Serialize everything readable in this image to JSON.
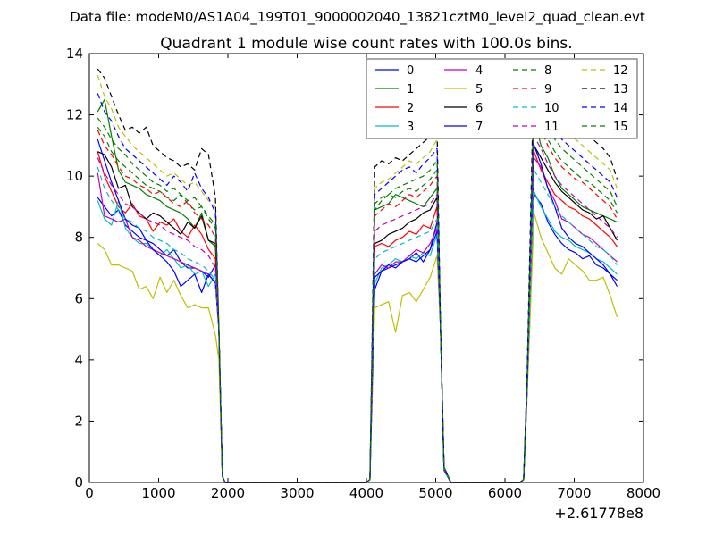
{
  "header": {
    "data_file": "Data file: modeM0/AS1A04_199T01_9000002040_13821cztM0_level2_quad_clean.evt"
  },
  "chart_data": {
    "type": "line",
    "title": "Quadrant 1 module wise count rates with 100.0s bins.",
    "xlabel": "",
    "ylabel": "",
    "x_offset_label": "+2.61778e8",
    "xlim": [
      0,
      8000
    ],
    "ylim": [
      0,
      14
    ],
    "xticks": [
      0,
      1000,
      2000,
      3000,
      4000,
      5000,
      6000,
      7000,
      8000
    ],
    "yticks": [
      0,
      2,
      4,
      6,
      8,
      10,
      12,
      14
    ],
    "grid": false,
    "legend_position": "top-right",
    "x": [
      120,
      220,
      320,
      420,
      520,
      620,
      720,
      820,
      920,
      1020,
      1120,
      1220,
      1320,
      1420,
      1520,
      1620,
      1720,
      1820,
      1870,
      1920,
      1960,
      4000,
      4050,
      4120,
      4220,
      4320,
      4420,
      4520,
      4620,
      4720,
      4820,
      4920,
      5020,
      5070,
      5120,
      5220,
      6220,
      6270,
      6320,
      6420,
      6520,
      6620,
      6720,
      6820,
      6920,
      7020,
      7120,
      7220,
      7320,
      7420,
      7520,
      7620
    ],
    "series": [
      {
        "name": "0",
        "color": "#0000ff",
        "dash": false,
        "values": [
          9.3,
          9.0,
          8.7,
          8.9,
          8.4,
          8.2,
          8.0,
          7.9,
          7.8,
          7.6,
          7.4,
          7.6,
          7.2,
          7.0,
          7.0,
          6.9,
          6.7,
          7.1,
          5.0,
          0.2,
          0.0,
          0.0,
          0.1,
          6.3,
          6.9,
          7.0,
          7.1,
          7.2,
          7.3,
          7.5,
          7.2,
          7.6,
          8.5,
          5.0,
          0.4,
          0.0,
          0.0,
          0.1,
          3.0,
          9.4,
          9.1,
          8.5,
          8.1,
          7.8,
          7.6,
          7.5,
          7.3,
          7.4,
          7.1,
          7.0,
          6.8,
          6.6
        ]
      },
      {
        "name": "1",
        "color": "#008000",
        "dash": false,
        "values": [
          12.1,
          12.5,
          11.3,
          10.2,
          9.8,
          9.7,
          9.6,
          9.4,
          9.3,
          9.2,
          9.0,
          8.9,
          8.8,
          8.6,
          8.3,
          8.8,
          7.9,
          7.7,
          5.0,
          0.2,
          0.0,
          0.0,
          0.1,
          8.9,
          9.0,
          9.1,
          9.4,
          9.3,
          9.2,
          9.1,
          9.0,
          9.3,
          9.6,
          5.0,
          0.5,
          0.0,
          0.0,
          0.1,
          3.2,
          11.9,
          11.0,
          10.6,
          10.0,
          9.6,
          9.4,
          9.2,
          9.0,
          8.9,
          8.8,
          8.7,
          8.6,
          8.5
        ]
      },
      {
        "name": "2",
        "color": "#ff0000",
        "dash": false,
        "values": [
          10.8,
          10.0,
          9.5,
          9.0,
          8.8,
          9.1,
          8.7,
          8.6,
          8.2,
          8.5,
          8.4,
          8.6,
          8.2,
          8.0,
          8.4,
          8.1,
          7.6,
          7.3,
          5.0,
          0.2,
          0.0,
          0.0,
          0.1,
          7.7,
          7.8,
          7.7,
          7.9,
          8.0,
          8.2,
          8.1,
          8.4,
          8.3,
          9.0,
          5.0,
          0.4,
          0.0,
          0.0,
          0.1,
          3.1,
          10.8,
          10.2,
          9.8,
          9.4,
          9.2,
          9.0,
          8.9,
          8.7,
          8.6,
          8.4,
          8.2,
          8.0,
          7.7
        ]
      },
      {
        "name": "3",
        "color": "#00bfbf",
        "dash": false,
        "values": [
          9.2,
          8.6,
          8.4,
          9.2,
          8.3,
          8.0,
          7.8,
          7.8,
          7.6,
          7.4,
          7.6,
          7.3,
          7.0,
          7.1,
          6.8,
          6.9,
          6.4,
          6.8,
          5.0,
          0.2,
          0.0,
          0.0,
          0.1,
          6.5,
          7.0,
          7.1,
          7.3,
          7.2,
          7.4,
          7.3,
          7.5,
          7.4,
          8.1,
          5.0,
          0.4,
          0.0,
          0.0,
          0.1,
          3.0,
          9.5,
          9.0,
          8.6,
          8.2,
          8.0,
          7.9,
          7.7,
          7.6,
          7.5,
          7.3,
          7.2,
          7.0,
          6.8
        ]
      },
      {
        "name": "4",
        "color": "#bf00bf",
        "dash": false,
        "values": [
          10.1,
          8.7,
          8.6,
          8.5,
          8.6,
          8.0,
          7.9,
          7.7,
          7.6,
          7.5,
          7.4,
          7.3,
          7.2,
          7.1,
          7.0,
          6.9,
          6.8,
          6.5,
          5.0,
          0.2,
          0.0,
          0.0,
          0.1,
          6.8,
          7.1,
          7.0,
          7.2,
          7.2,
          7.4,
          7.6,
          7.5,
          7.8,
          8.3,
          5.0,
          0.4,
          0.0,
          0.0,
          0.1,
          3.1,
          10.6,
          10.3,
          9.6,
          9.2,
          8.6,
          8.5,
          8.3,
          8.1,
          8.0,
          7.8,
          7.6,
          7.4,
          7.2
        ]
      },
      {
        "name": "5",
        "color": "#bfbf00",
        "dash": false,
        "values": [
          7.8,
          7.6,
          7.1,
          7.1,
          7.0,
          6.9,
          6.3,
          6.4,
          6.0,
          6.7,
          6.2,
          6.6,
          6.1,
          5.7,
          5.8,
          5.7,
          5.7,
          4.8,
          4.0,
          0.2,
          0.0,
          0.0,
          0.1,
          5.7,
          5.8,
          5.9,
          4.9,
          6.1,
          6.2,
          5.9,
          6.3,
          6.7,
          7.4,
          5.0,
          0.4,
          0.0,
          0.0,
          0.1,
          2.8,
          8.8,
          8.0,
          7.5,
          7.0,
          6.8,
          7.3,
          7.1,
          6.9,
          6.6,
          6.6,
          6.7,
          6.1,
          5.4
        ]
      },
      {
        "name": "6",
        "color": "#000000",
        "dash": false,
        "values": [
          10.8,
          10.7,
          10.3,
          9.6,
          9.7,
          9.0,
          8.8,
          8.6,
          8.8,
          8.7,
          8.5,
          8.3,
          8.1,
          8.5,
          8.3,
          8.7,
          7.9,
          7.8,
          5.0,
          0.2,
          0.0,
          0.0,
          0.1,
          7.8,
          7.9,
          8.1,
          8.2,
          8.3,
          8.5,
          8.6,
          8.8,
          8.9,
          9.3,
          5.0,
          0.4,
          0.0,
          0.0,
          0.1,
          3.2,
          11.0,
          10.6,
          10.2,
          9.8,
          9.5,
          9.3,
          9.1,
          8.9,
          8.8,
          8.6,
          8.7,
          8.3,
          7.9
        ]
      },
      {
        "name": "7",
        "color": "#0000ff",
        "dash": false,
        "values": [
          11.2,
          10.5,
          9.8,
          9.2,
          8.6,
          8.4,
          8.3,
          7.9,
          7.6,
          7.4,
          7.2,
          6.9,
          6.4,
          6.6,
          6.8,
          6.2,
          6.8,
          6.5,
          5.0,
          0.2,
          0.0,
          0.0,
          0.1,
          6.7,
          6.9,
          7.1,
          7.0,
          7.2,
          7.3,
          7.2,
          7.4,
          7.6,
          8.2,
          5.0,
          0.4,
          0.0,
          0.0,
          0.1,
          3.0,
          11.0,
          10.4,
          9.6,
          9.0,
          8.3,
          8.0,
          7.8,
          7.7,
          7.5,
          7.3,
          7.1,
          6.8,
          6.4
        ]
      },
      {
        "name": "8",
        "color": "#008000",
        "dash": true,
        "values": [
          11.6,
          11.3,
          10.8,
          10.5,
          10.3,
          10.1,
          9.9,
          9.7,
          9.6,
          9.5,
          9.3,
          9.2,
          9.4,
          9.1,
          8.9,
          9.0,
          8.6,
          8.3,
          5.0,
          0.2,
          0.0,
          0.0,
          0.1,
          8.9,
          9.2,
          9.4,
          9.3,
          9.5,
          9.6,
          9.5,
          9.7,
          9.9,
          10.2,
          5.0,
          0.5,
          0.0,
          0.0,
          0.1,
          3.3,
          12.3,
          11.7,
          11.2,
          10.8,
          10.5,
          10.3,
          10.1,
          9.9,
          9.8,
          9.6,
          9.4,
          9.2,
          8.8
        ]
      },
      {
        "name": "9",
        "color": "#ff0000",
        "dash": true,
        "values": [
          11.5,
          11.0,
          10.7,
          10.3,
          10.0,
          9.9,
          9.7,
          9.6,
          9.4,
          9.5,
          9.3,
          9.1,
          9.0,
          9.2,
          8.8,
          8.6,
          8.4,
          8.0,
          5.0,
          0.2,
          0.0,
          0.0,
          0.1,
          8.7,
          8.9,
          9.1,
          9.0,
          9.2,
          9.4,
          9.3,
          9.5,
          9.7,
          10.0,
          5.0,
          0.5,
          0.0,
          0.0,
          0.1,
          3.3,
          12.1,
          11.5,
          11.0,
          10.6,
          10.3,
          10.1,
          9.9,
          9.8,
          9.6,
          9.4,
          9.2,
          9.0,
          8.6
        ]
      },
      {
        "name": "10",
        "color": "#00bfbf",
        "dash": true,
        "values": [
          10.3,
          9.6,
          9.2,
          8.9,
          8.6,
          8.5,
          8.3,
          8.2,
          8.0,
          7.9,
          7.8,
          7.6,
          7.5,
          7.3,
          7.2,
          7.1,
          6.9,
          6.6,
          5.0,
          0.2,
          0.0,
          0.0,
          0.1,
          7.3,
          7.5,
          7.6,
          7.7,
          7.8,
          7.9,
          8.0,
          8.1,
          8.2,
          8.6,
          5.0,
          0.4,
          0.0,
          0.0,
          0.1,
          3.0,
          10.2,
          9.8,
          9.4,
          9.0,
          8.7,
          8.5,
          8.3,
          8.1,
          7.9,
          7.7,
          7.6,
          7.4,
          7.1
        ]
      },
      {
        "name": "11",
        "color": "#bf00bf",
        "dash": true,
        "values": [
          10.6,
          10.1,
          9.7,
          9.4,
          9.1,
          9.0,
          8.8,
          8.6,
          8.5,
          8.4,
          8.2,
          8.1,
          8.0,
          7.9,
          7.7,
          7.6,
          7.4,
          7.0,
          5.0,
          0.2,
          0.0,
          0.0,
          0.1,
          8.2,
          8.4,
          8.5,
          8.6,
          8.7,
          8.8,
          8.9,
          9.0,
          9.1,
          9.4,
          5.0,
          0.4,
          0.0,
          0.0,
          0.1,
          3.1,
          11.3,
          10.9,
          10.4,
          10.0,
          9.7,
          9.5,
          9.3,
          9.1,
          8.9,
          8.7,
          8.5,
          8.3,
          8.0
        ]
      },
      {
        "name": "12",
        "color": "#bfbf00",
        "dash": true,
        "values": [
          13.3,
          12.6,
          12.2,
          11.6,
          11.3,
          11.0,
          10.8,
          10.6,
          10.4,
          10.2,
          10.0,
          10.1,
          9.9,
          9.7,
          9.8,
          9.5,
          9.2,
          9.0,
          5.0,
          0.2,
          0.0,
          0.0,
          0.1,
          9.6,
          9.8,
          9.9,
          10.1,
          10.3,
          10.5,
          10.4,
          10.6,
          10.8,
          11.2,
          5.0,
          0.5,
          0.0,
          0.0,
          0.1,
          3.5,
          13.4,
          12.8,
          12.3,
          11.9,
          11.6,
          11.4,
          11.2,
          11.0,
          10.8,
          10.6,
          10.4,
          10.2,
          9.6
        ]
      },
      {
        "name": "13",
        "color": "#000000",
        "dash": true,
        "values": [
          13.5,
          13.2,
          12.6,
          12.0,
          11.5,
          11.6,
          11.4,
          11.6,
          11.0,
          10.8,
          10.6,
          10.5,
          10.3,
          10.4,
          10.2,
          10.9,
          10.7,
          9.3,
          5.0,
          0.2,
          0.0,
          0.0,
          0.1,
          10.3,
          10.5,
          10.4,
          10.6,
          10.5,
          10.7,
          10.9,
          11.1,
          11.3,
          11.6,
          5.0,
          0.5,
          0.0,
          0.0,
          0.1,
          3.6,
          13.8,
          13.3,
          12.9,
          12.5,
          12.1,
          11.9,
          11.7,
          11.5,
          11.3,
          11.1,
          10.9,
          10.6,
          9.9
        ]
      },
      {
        "name": "14",
        "color": "#0000ff",
        "dash": true,
        "values": [
          12.7,
          12.1,
          11.8,
          11.3,
          10.9,
          10.7,
          10.5,
          10.3,
          10.1,
          9.9,
          9.7,
          10.0,
          9.8,
          9.5,
          10.1,
          9.6,
          9.3,
          8.8,
          5.0,
          0.2,
          0.0,
          0.0,
          0.1,
          9.4,
          9.6,
          9.8,
          10.0,
          10.2,
          10.3,
          10.1,
          10.4,
          10.6,
          10.9,
          5.0,
          0.5,
          0.0,
          0.0,
          0.1,
          3.4,
          12.9,
          12.4,
          11.9,
          11.5,
          11.2,
          11.0,
          10.8,
          10.6,
          10.4,
          10.2,
          10.0,
          9.8,
          9.3
        ]
      },
      {
        "name": "15",
        "color": "#008000",
        "dash": true,
        "values": [
          11.9,
          11.6,
          11.2,
          10.9,
          10.7,
          10.4,
          10.2,
          10.0,
          9.8,
          9.7,
          9.5,
          9.6,
          9.4,
          9.2,
          9.3,
          9.0,
          8.7,
          8.4,
          5.0,
          0.2,
          0.0,
          0.0,
          0.1,
          9.1,
          9.3,
          9.4,
          9.6,
          9.7,
          9.8,
          9.9,
          10.0,
          10.2,
          10.5,
          5.0,
          0.5,
          0.0,
          0.0,
          0.1,
          3.3,
          12.6,
          12.1,
          11.6,
          11.2,
          10.9,
          10.7,
          10.5,
          10.3,
          10.1,
          9.9,
          9.7,
          9.5,
          9.0
        ]
      }
    ]
  }
}
